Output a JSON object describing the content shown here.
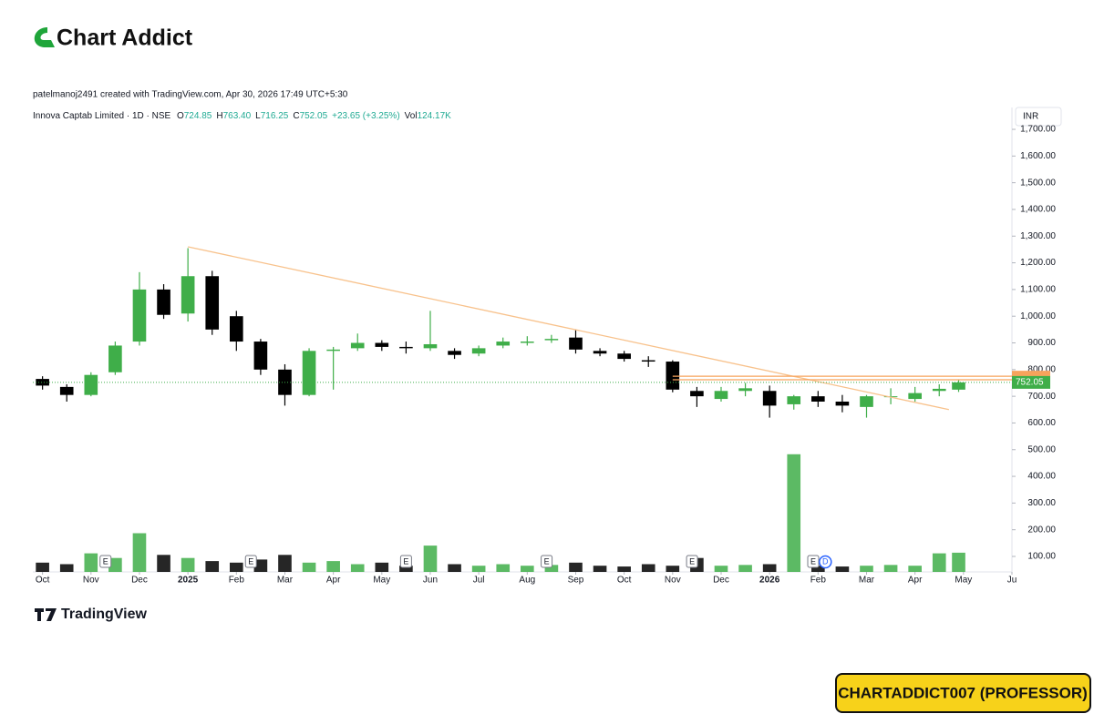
{
  "header": {
    "logo": "Chart Addict",
    "credit": "patelmanoj2491 created with TradingView.com, Apr 30, 2026 17:49 UTC+5:30"
  },
  "legend": {
    "symbol": "Innova Captab Limited · 1D · NSE",
    "items": [
      {
        "label": "O",
        "value": "724.85"
      },
      {
        "label": "H",
        "value": "763.40"
      },
      {
        "label": "L",
        "value": "716.25"
      },
      {
        "label": "C",
        "value": "752.05"
      },
      {
        "label": "",
        "value": "+23.65 (+3.25%)"
      },
      {
        "label": "Vol",
        "value": "124.17K"
      }
    ]
  },
  "chart_data": {
    "type": "candlestick",
    "currency": "INR",
    "x": [
      0,
      0.5,
      1,
      1.5,
      2,
      2.5,
      3,
      3.5,
      4,
      4.5,
      5,
      5.5,
      6,
      6.5,
      7,
      7.5,
      8,
      8.5,
      9,
      9.5,
      10,
      10.5,
      11,
      11.5,
      12,
      12.5,
      13,
      13.5,
      14,
      14.5,
      15,
      15.5,
      16,
      16.5,
      17,
      17.5,
      18,
      18.5,
      18.9
    ],
    "open": [
      765,
      735,
      705,
      790,
      905,
      1100,
      1010,
      1150,
      1000,
      905,
      800,
      705,
      870,
      880,
      900,
      885,
      880,
      870,
      860,
      890,
      900,
      910,
      920,
      870,
      860,
      835,
      830,
      720,
      690,
      720,
      720,
      670,
      700,
      680,
      660,
      700,
      690,
      720,
      724.85
    ],
    "high": [
      775,
      745,
      790,
      905,
      1165,
      1120,
      1255,
      1170,
      1020,
      915,
      820,
      880,
      885,
      935,
      910,
      905,
      1020,
      880,
      890,
      920,
      925,
      930,
      950,
      880,
      870,
      850,
      835,
      735,
      735,
      750,
      740,
      705,
      720,
      705,
      705,
      730,
      735,
      745,
      763.4
    ],
    "low": [
      725,
      680,
      700,
      780,
      890,
      990,
      980,
      930,
      870,
      780,
      665,
      700,
      725,
      870,
      870,
      860,
      870,
      840,
      850,
      880,
      890,
      900,
      860,
      850,
      830,
      810,
      715,
      660,
      680,
      700,
      620,
      650,
      660,
      640,
      620,
      670,
      680,
      700,
      716.25
    ],
    "close": [
      740,
      705,
      780,
      890,
      1100,
      1005,
      1150,
      950,
      905,
      800,
      705,
      870,
      875,
      900,
      885,
      880,
      895,
      855,
      880,
      905,
      905,
      915,
      875,
      860,
      840,
      830,
      725,
      700,
      720,
      730,
      665,
      700,
      680,
      665,
      700,
      700,
      712,
      728,
      752.05
    ],
    "volume": [
      60,
      50,
      120,
      90,
      250,
      110,
      90,
      70,
      60,
      80,
      110,
      60,
      70,
      50,
      60,
      40,
      170,
      50,
      40,
      50,
      40,
      45,
      60,
      40,
      35,
      50,
      40,
      90,
      40,
      45,
      50,
      760,
      40,
      35,
      40,
      45,
      40,
      120,
      124.17
    ],
    "volume_ylim": [
      0,
      3000
    ],
    "up_color": "#3fae49",
    "down_color": "#000000",
    "xlim": [
      -0.2,
      20
    ],
    "xticks": [
      {
        "value": 0,
        "label": "Oct"
      },
      {
        "value": 1,
        "label": "Nov"
      },
      {
        "value": 2,
        "label": "Dec"
      },
      {
        "value": 3,
        "label": "2025"
      },
      {
        "value": 4,
        "label": "Feb"
      },
      {
        "value": 5,
        "label": "Mar"
      },
      {
        "value": 6,
        "label": "Apr"
      },
      {
        "value": 7,
        "label": "May"
      },
      {
        "value": 8,
        "label": "Jun"
      },
      {
        "value": 9,
        "label": "Jul"
      },
      {
        "value": 10,
        "label": "Aug"
      },
      {
        "value": 11,
        "label": "Sep"
      },
      {
        "value": 12,
        "label": "Oct"
      },
      {
        "value": 13,
        "label": "Nov"
      },
      {
        "value": 14,
        "label": "Dec"
      },
      {
        "value": 15,
        "label": "2026"
      },
      {
        "value": 16,
        "label": "Feb"
      },
      {
        "value": 17,
        "label": "Mar"
      },
      {
        "value": 18,
        "label": "Apr"
      },
      {
        "value": 19,
        "label": "May"
      },
      {
        "value": 20,
        "label": "Ju"
      }
    ],
    "ylim": [
      42,
      1782
    ],
    "yticks": [
      {
        "value": 100,
        "label": "100.00"
      },
      {
        "value": 200,
        "label": "200.00"
      },
      {
        "value": 300,
        "label": "300.00"
      },
      {
        "value": 400,
        "label": "400.00"
      },
      {
        "value": 500,
        "label": "500.00"
      },
      {
        "value": 600,
        "label": "600.00"
      },
      {
        "value": 700,
        "label": "700.00"
      },
      {
        "value": 800,
        "label": "800.00"
      },
      {
        "value": 900,
        "label": "900.00"
      },
      {
        "value": 1000,
        "label": "1,000.00"
      },
      {
        "value": 1100,
        "label": "1,100.00"
      },
      {
        "value": 1200,
        "label": "1,200.00"
      },
      {
        "value": 1300,
        "label": "1,300.00"
      },
      {
        "value": 1400,
        "label": "1,400.00"
      },
      {
        "value": 1500,
        "label": "1,500.00"
      },
      {
        "value": 1600,
        "label": "1,600.00"
      },
      {
        "value": 1700,
        "label": "1,700.00"
      }
    ],
    "trendline": {
      "x": [
        3,
        18.7
      ],
      "y": [
        1260,
        650
      ],
      "color": "#f8c28c"
    },
    "hlines": [
      {
        "x": 13,
        "value": 775,
        "color": "#f7a35c"
      },
      {
        "x": 13,
        "value": 762,
        "color": "#f7a35c"
      }
    ],
    "last_price": 752.05,
    "events": [
      {
        "x": 1.3,
        "label": "E"
      },
      {
        "x": 4.3,
        "label": "E"
      },
      {
        "x": 7.5,
        "label": "E"
      },
      {
        "x": 10.4,
        "label": "E"
      },
      {
        "x": 13.4,
        "label": "E"
      },
      {
        "x": 15.9,
        "label": "E"
      },
      {
        "x": 16.15,
        "label": "D"
      }
    ]
  },
  "footer": {
    "brand": "TradingView",
    "badge": "CHARTADDICT007 (PROFESSOR)"
  }
}
